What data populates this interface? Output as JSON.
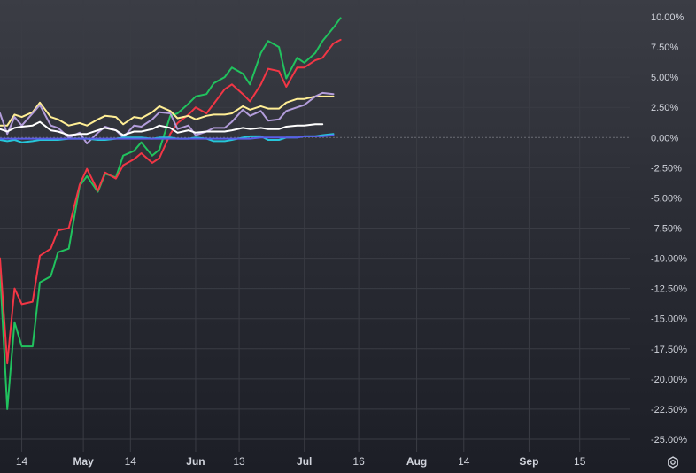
{
  "chart_data": {
    "type": "line",
    "title": "",
    "xlabel": "",
    "ylabel": "",
    "ylim": [
      -25,
      11
    ],
    "y_ticks": [
      10,
      7.5,
      5,
      2.5,
      0,
      -2.5,
      -5,
      -7.5,
      -10,
      -12.5,
      -15,
      -17.5,
      -20,
      -22.5,
      -25
    ],
    "y_tick_labels": [
      "10.00%",
      "7.50%",
      "5.00%",
      "2.50%",
      "0.00%",
      "-2.50%",
      "-5.00%",
      "-7.50%",
      "-10.00%",
      "-12.50%",
      "-15.00%",
      "-17.50%",
      "-20.00%",
      "-22.50%",
      "-25.00%"
    ],
    "x_ticks": [
      {
        "label": "14",
        "x": "2023-04-14"
      },
      {
        "label": "May",
        "x": "2023-05-01"
      },
      {
        "label": "14",
        "x": "2023-05-14"
      },
      {
        "label": "Jun",
        "x": "2023-06-01"
      },
      {
        "label": "13",
        "x": "2023-06-13"
      },
      {
        "label": "Jul",
        "x": "2023-07-01"
      },
      {
        "label": "16",
        "x": "2023-07-16"
      },
      {
        "label": "Aug",
        "x": "2023-08-01"
      },
      {
        "label": "14",
        "x": "2023-08-14"
      },
      {
        "label": "Sep",
        "x": "2023-09-01"
      },
      {
        "label": "15",
        "x": "2023-09-15"
      }
    ],
    "x_range": [
      "2023-04-08",
      "2023-09-29"
    ],
    "grid": true,
    "legend": "none",
    "x": [
      "2023-04-08",
      "2023-04-10",
      "2023-04-12",
      "2023-04-14",
      "2023-04-17",
      "2023-04-19",
      "2023-04-22",
      "2023-04-24",
      "2023-04-27",
      "2023-04-30",
      "2023-05-02",
      "2023-05-05",
      "2023-05-07",
      "2023-05-10",
      "2023-05-12",
      "2023-05-15",
      "2023-05-17",
      "2023-05-20",
      "2023-05-22",
      "2023-05-25",
      "2023-05-27",
      "2023-05-30",
      "2023-06-01",
      "2023-06-04",
      "2023-06-06",
      "2023-06-09",
      "2023-06-11",
      "2023-06-14",
      "2023-06-16",
      "2023-06-19",
      "2023-06-21",
      "2023-06-24",
      "2023-06-26",
      "2023-06-29",
      "2023-07-01",
      "2023-07-04",
      "2023-07-06",
      "2023-07-09",
      "2023-07-11",
      "2023-07-14",
      "2023-07-16",
      "2023-07-19",
      "2023-07-21",
      "2023-07-24",
      "2023-07-26",
      "2023-07-29",
      "2023-07-31",
      "2023-08-03",
      "2023-08-05",
      "2023-08-08",
      "2023-08-10",
      "2023-08-13",
      "2023-08-15",
      "2023-08-18",
      "2023-08-20",
      "2023-08-23",
      "2023-08-25",
      "2023-08-28",
      "2023-08-30",
      "2023-09-02",
      "2023-09-04",
      "2023-09-07",
      "2023-09-09",
      "2023-09-12",
      "2023-09-14"
    ],
    "series": [
      {
        "color": "#21c25e",
        "values": [
          -11,
          -22.5,
          -15.3,
          -17.3,
          -17.3,
          -12,
          -11.5,
          -9.5,
          -9.2,
          -4,
          -3.2,
          -4.5,
          -3,
          -3.3,
          -1.5,
          -1.1,
          -0.4,
          -1.5,
          -1,
          1.8,
          2,
          2.8,
          3.4,
          3.6,
          4.5,
          5,
          5.8,
          5.3,
          4.4,
          7,
          8,
          7.5,
          4.9,
          6.6,
          6.2,
          7,
          8,
          9.1,
          9.9,
          null,
          null,
          null,
          null,
          null,
          null,
          null,
          null,
          null,
          null,
          null,
          null,
          null,
          null,
          null,
          null,
          null,
          null,
          null,
          null,
          null,
          null,
          null,
          null,
          null,
          null
        ]
      },
      {
        "color": "#f23645",
        "values": [
          -10,
          -18.7,
          -12.5,
          -13.8,
          -13.6,
          -9.8,
          -9.2,
          -7.7,
          -7.5,
          -3.9,
          -2.6,
          -4.4,
          -2.9,
          -3.4,
          -2.3,
          -1.8,
          -1.3,
          -2.1,
          -1.7,
          0.3,
          1.2,
          1.9,
          2.5,
          2,
          2.8,
          4,
          4.4,
          3.6,
          3,
          4.4,
          5.7,
          5.5,
          4.2,
          5.8,
          5.8,
          6.4,
          6.6,
          7.8,
          8.1,
          null,
          null,
          null,
          null,
          null,
          null,
          null,
          null,
          null,
          null,
          null,
          null,
          null,
          null,
          null,
          null,
          null,
          null,
          null,
          null,
          null,
          null,
          null,
          null,
          null,
          null
        ]
      },
      {
        "color": "#ffee95",
        "values": [
          1,
          1,
          1.9,
          1.7,
          2.1,
          2.9,
          1.7,
          1.5,
          1,
          1.2,
          1,
          1.5,
          1.8,
          1.7,
          1.1,
          1.7,
          1.6,
          2.1,
          2.6,
          2.2,
          1.6,
          1.8,
          1.5,
          1.8,
          1.9,
          1.9,
          2,
          2.6,
          2.3,
          2.6,
          2.4,
          2.4,
          2.9,
          3.2,
          3.2,
          3.4,
          3.4,
          3.4,
          null,
          null,
          null,
          null,
          null,
          null,
          null,
          null,
          null,
          null,
          null,
          null,
          null,
          null,
          null,
          null,
          null,
          null,
          null,
          null,
          null,
          null,
          null,
          null,
          null,
          null,
          null
        ]
      },
      {
        "color": "#b39ddb",
        "values": [
          2,
          0.3,
          1.7,
          1,
          2,
          2.7,
          1,
          0.8,
          0,
          0.4,
          -0.5,
          0.4,
          0.9,
          0.6,
          0,
          1,
          0.9,
          1.5,
          2.1,
          2,
          0.7,
          1,
          0.2,
          0.5,
          0.8,
          0.8,
          1.3,
          2.3,
          1.8,
          2.2,
          1.4,
          1.5,
          2.2,
          2.5,
          2.7,
          3.4,
          3.7,
          3.6,
          null,
          null,
          null,
          null,
          null,
          null,
          null,
          null,
          null,
          null,
          null,
          null,
          null,
          null,
          null,
          null,
          null,
          null,
          null,
          null,
          null,
          null,
          null,
          null,
          null,
          null,
          null
        ]
      },
      {
        "color": "#ffffff",
        "values": [
          0.7,
          0.5,
          0.8,
          0.9,
          1,
          1.3,
          0.6,
          0.5,
          0.2,
          0.3,
          0.3,
          0.6,
          0.8,
          0.6,
          0.2,
          0.5,
          0.5,
          0.7,
          1,
          0.8,
          0.4,
          0.6,
          0.4,
          0.5,
          0.5,
          0.5,
          0.6,
          0.8,
          0.7,
          0.8,
          0.7,
          0.7,
          0.9,
          1,
          1,
          1.1,
          1.1,
          null,
          null,
          null,
          null,
          null,
          null,
          null,
          null,
          null,
          null,
          null,
          null,
          null,
          null,
          null,
          null,
          null,
          null,
          null,
          null,
          null,
          null,
          null,
          null,
          null,
          null,
          null,
          null
        ]
      },
      {
        "color": "#26c6da",
        "values": [
          -0.2,
          -0.3,
          -0.2,
          -0.4,
          -0.3,
          -0.2,
          -0.2,
          -0.2,
          -0.1,
          -0.1,
          -0.1,
          -0.2,
          -0.2,
          -0.1,
          0,
          0,
          0,
          -0.1,
          0,
          0,
          -0.1,
          -0.1,
          0,
          -0.1,
          -0.3,
          -0.3,
          -0.2,
          0,
          0.1,
          0.1,
          -0.2,
          -0.2,
          0,
          0,
          0.1,
          0.1,
          0.2,
          0.3,
          null,
          null,
          null,
          null,
          null,
          null,
          null,
          null,
          null,
          null,
          null,
          null,
          null,
          null,
          null,
          null,
          null,
          null,
          null,
          null,
          null,
          null,
          null,
          null,
          null,
          null,
          null
        ]
      },
      {
        "color": "#5b5ce8",
        "values": [
          -0.1,
          -0.1,
          -0.1,
          -0.1,
          -0.1,
          -0.1,
          -0.1,
          -0.1,
          -0.1,
          -0.1,
          -0.1,
          -0.1,
          -0.1,
          -0.1,
          -0.1,
          -0.1,
          -0.1,
          -0.1,
          -0.1,
          -0.1,
          -0.1,
          -0.1,
          -0.1,
          -0.1,
          -0.1,
          -0.1,
          -0.1,
          -0.1,
          -0.1,
          0,
          0,
          0,
          0,
          0,
          0.1,
          0.1,
          0.1,
          0.2,
          null,
          null,
          null,
          null,
          null,
          null,
          null,
          null,
          null,
          null,
          null,
          null,
          null,
          null,
          null,
          null,
          null,
          null,
          null,
          null,
          null,
          null,
          null,
          null,
          null,
          null,
          null
        ]
      }
    ]
  },
  "colors": {
    "grid": "#3a3c44",
    "zero_line": "#6b6d75",
    "tick_text": "#d1d4dc"
  },
  "icons": {
    "settings": "gear-icon"
  }
}
